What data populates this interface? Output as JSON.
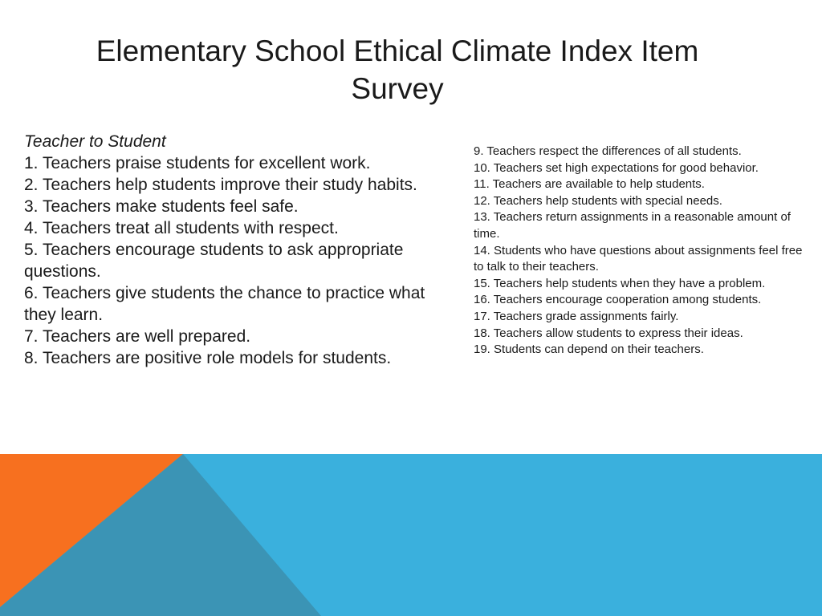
{
  "slide": {
    "title": "Elementary School Ethical Climate Index Item Survey",
    "left": {
      "heading": "Teacher to Student",
      "items": [
        "1. Teachers praise students for excellent work.",
        "2. Teachers help students improve their study habits.",
        "3. Teachers make students feel safe.",
        "4. Teachers treat all students with respect.",
        "5. Teachers encourage students to ask appropriate questions.",
        "6. Teachers give students the chance to practice what they learn.",
        "7. Teachers are well prepared.",
        "8. Teachers are positive role models for students."
      ]
    },
    "right": {
      "items": [
        "9. Teachers respect the differences of all students.",
        "10. Teachers set high expectations for good behavior.",
        "11. Teachers are available to help students.",
        "12. Teachers help students with special needs.",
        "13. Teachers return assignments in a reasonable amount of time.",
        "14. Students who have questions about assignments feel free to talk to their teachers.",
        "15. Teachers help students when they have a problem.",
        "16. Teachers encourage cooperation among students.",
        "17. Teachers grade assignments fairly.",
        "18. Teachers allow students to express their ideas.",
        "19. Students can depend on their teachers."
      ]
    }
  },
  "colors": {
    "blue": "#3ab0dd",
    "orange": "#f7701f",
    "dark_blue": "#3b94b5"
  }
}
